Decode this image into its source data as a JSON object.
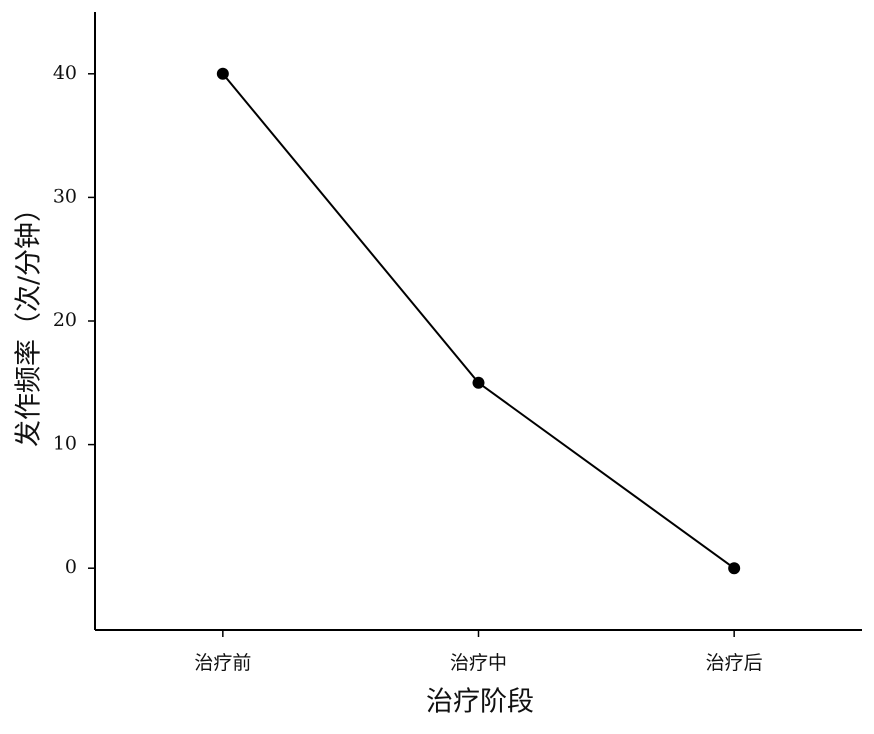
{
  "chart_data": {
    "type": "line",
    "categories": [
      "治疗前",
      "治疗中",
      "治疗后"
    ],
    "values": [
      40,
      15,
      0
    ],
    "color": "#000000",
    "xlabel": "治疗阶段",
    "ylabel": "发作频率（次/分钟）",
    "ylim": [
      -5,
      45
    ],
    "yticks": [
      0,
      10,
      20,
      30,
      40
    ]
  }
}
